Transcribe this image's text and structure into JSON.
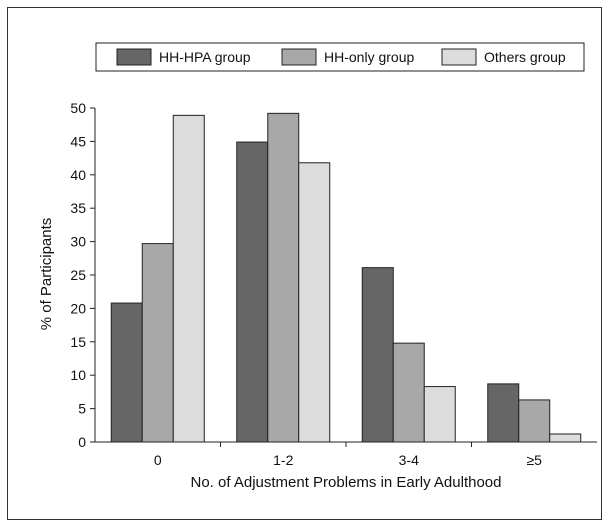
{
  "chart_data": {
    "type": "bar",
    "categories": [
      "0",
      "1-2",
      "3-4",
      "≥5"
    ],
    "series": [
      {
        "name": "HH-HPA group",
        "values": [
          20.8,
          44.9,
          26.1,
          8.7
        ],
        "color": "#666666"
      },
      {
        "name": "HH-only group",
        "values": [
          29.7,
          49.2,
          14.8,
          6.3
        ],
        "color": "#a8a8a8"
      },
      {
        "name": "Others group",
        "values": [
          48.9,
          41.8,
          8.3,
          1.2
        ],
        "color": "#dcdcdc"
      }
    ],
    "xlabel": "No. of Adjustment Problems in Early Adulthood",
    "ylabel": "% of Participants",
    "ylim": [
      0,
      50
    ],
    "yticks": [
      0,
      5,
      10,
      15,
      20,
      25,
      30,
      35,
      40,
      45,
      50
    ],
    "grid": false,
    "legend_position": "top"
  }
}
